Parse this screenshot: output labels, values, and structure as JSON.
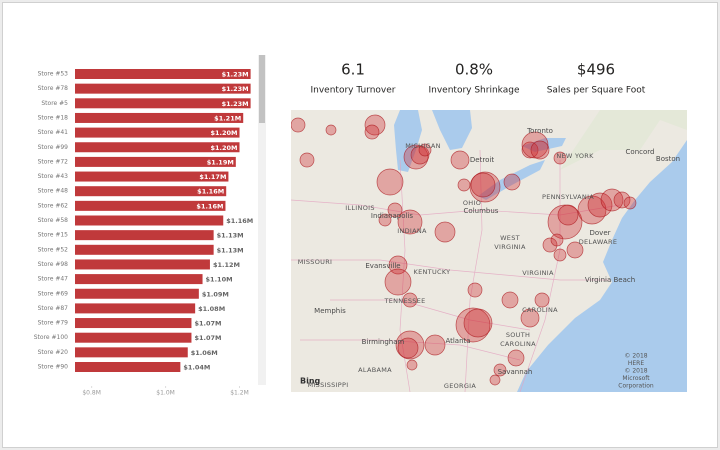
{
  "chart_data": {
    "type": "bar",
    "orientation": "horizontal",
    "categories": [
      "Store #53",
      "Store #78",
      "Store #5",
      "Store #18",
      "Store #41",
      "Store #99",
      "Store #72",
      "Store #43",
      "Store #48",
      "Store #62",
      "Store #58",
      "Store #15",
      "Store #52",
      "Store #98",
      "Store #47",
      "Store #69",
      "Store #87",
      "Store #79",
      "Store #100",
      "Store #20",
      "Store #90"
    ],
    "values": [
      1230000,
      1230000,
      1230000,
      1210000,
      1200000,
      1200000,
      1190000,
      1170000,
      1164000,
      1162000,
      1156000,
      1130000,
      1130000,
      1120000,
      1100000,
      1090000,
      1080000,
      1070000,
      1070000,
      1060000,
      1040000
    ],
    "value_labels": [
      "$1.23M",
      "$1.23M",
      "$1.23M",
      "$1.21M",
      "$1.20M",
      "$1.20M",
      "$1.19M",
      "$1.17M",
      "$1.16M",
      "$1.16M",
      "$1.16M",
      "$1.13M",
      "$1.13M",
      "$1.12M",
      "$1.10M",
      "$1.09M",
      "$1.08M",
      "$1.07M",
      "$1.07M",
      "$1.06M",
      "$1.04M"
    ],
    "color": "#c0393b",
    "xlim": [
      755000,
      1250000
    ],
    "xticks": [
      {
        "value": 800000,
        "label": "$0.8M"
      },
      {
        "value": 1000000,
        "label": "$1.0M"
      },
      {
        "value": 1200000,
        "label": "$1.2M"
      }
    ]
  },
  "kpis": [
    {
      "value": "6.1",
      "label": "Inventory Turnover"
    },
    {
      "value": "0.8%",
      "label": "Inventory Shrinkage"
    },
    {
      "value": "$496",
      "label": "Sales per Square Foot"
    }
  ],
  "map": {
    "labels": [
      "MICHIGAN",
      "Toronto",
      "NEW YORK",
      "Detroit",
      "Concord",
      "Boston",
      "ILLINOIS",
      "OHIO",
      "Columbus",
      "PENNSYLVANIA",
      "Indianapolis",
      "INDIANA",
      "Dover",
      "DELAWARE",
      "WEST",
      "VIRGINIA",
      "MISSOURI",
      "Evansville",
      "KENTUCKY",
      "VIRGINIA",
      "Virginia Beach",
      "Memphis",
      "TENNESSEE",
      "CAROLINA",
      "Birmingham",
      "Atlanta",
      "SOUTH",
      "CAROLINA",
      "ALABAMA",
      "GEORGIA",
      "MISSISSIPPI",
      "Savannah"
    ],
    "brand": "Bing",
    "attribution": [
      "© 2018",
      "HERE",
      "© 2018",
      "Microsoft",
      "Corporation"
    ]
  }
}
